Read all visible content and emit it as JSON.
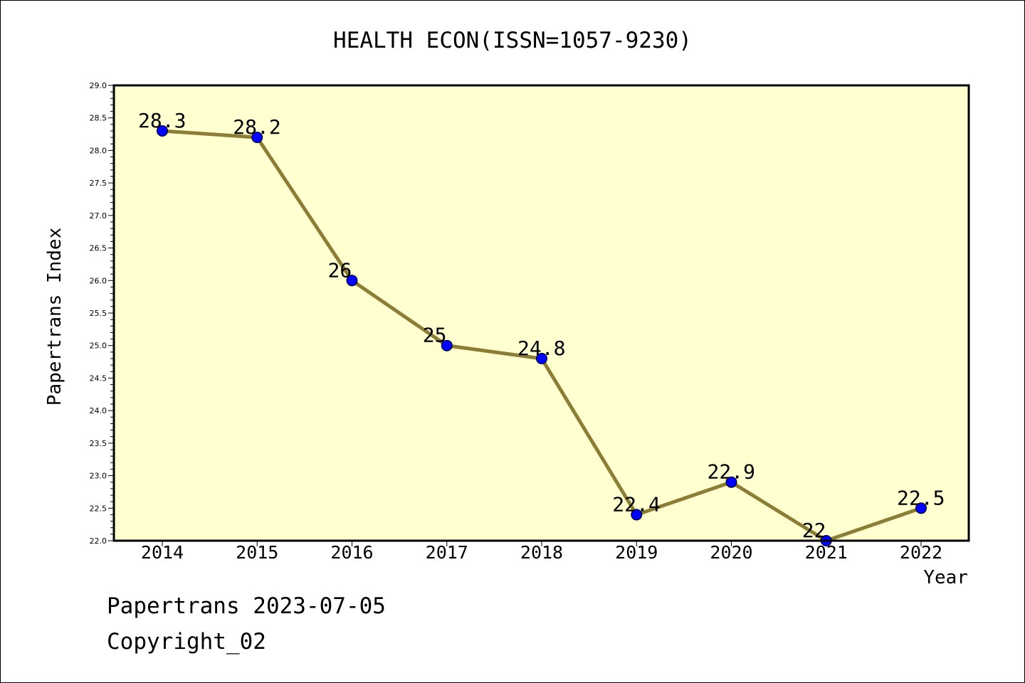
{
  "chart_data": {
    "type": "line",
    "title": "HEALTH ECON(ISSN=1057-9230)",
    "xlabel": "Year",
    "ylabel": "Papertrans Index",
    "categories": [
      "2014",
      "2015",
      "2016",
      "2017",
      "2018",
      "2019",
      "2020",
      "2021",
      "2022"
    ],
    "series": [
      {
        "values": [
          28.3,
          28.2,
          26.0,
          25.0,
          24.8,
          22.4,
          22.9,
          22.0,
          22.5
        ],
        "labels": [
          "28.3",
          "28.2",
          "26",
          "25",
          "24.8",
          "22.4",
          "22.9",
          "22",
          "22.5"
        ]
      }
    ],
    "ylim": [
      22.0,
      29.0
    ],
    "y_major_step": 0.5,
    "y_tick_labels": [
      "22.0",
      "22.5",
      "23.0",
      "23.5",
      "24.0",
      "24.5",
      "25.0",
      "25.5",
      "26.0",
      "26.5",
      "27.0",
      "27.5",
      "28.0",
      "28.5",
      "29.0"
    ],
    "grid": false,
    "legend": "none",
    "colors": {
      "plot_background": "#ffffd0",
      "line": "#8b7d35",
      "marker": "#0000ff",
      "axis": "#000000"
    }
  },
  "footer": {
    "date_line": "Papertrans 2023-07-05",
    "copyright_line": "Copyright_02"
  }
}
